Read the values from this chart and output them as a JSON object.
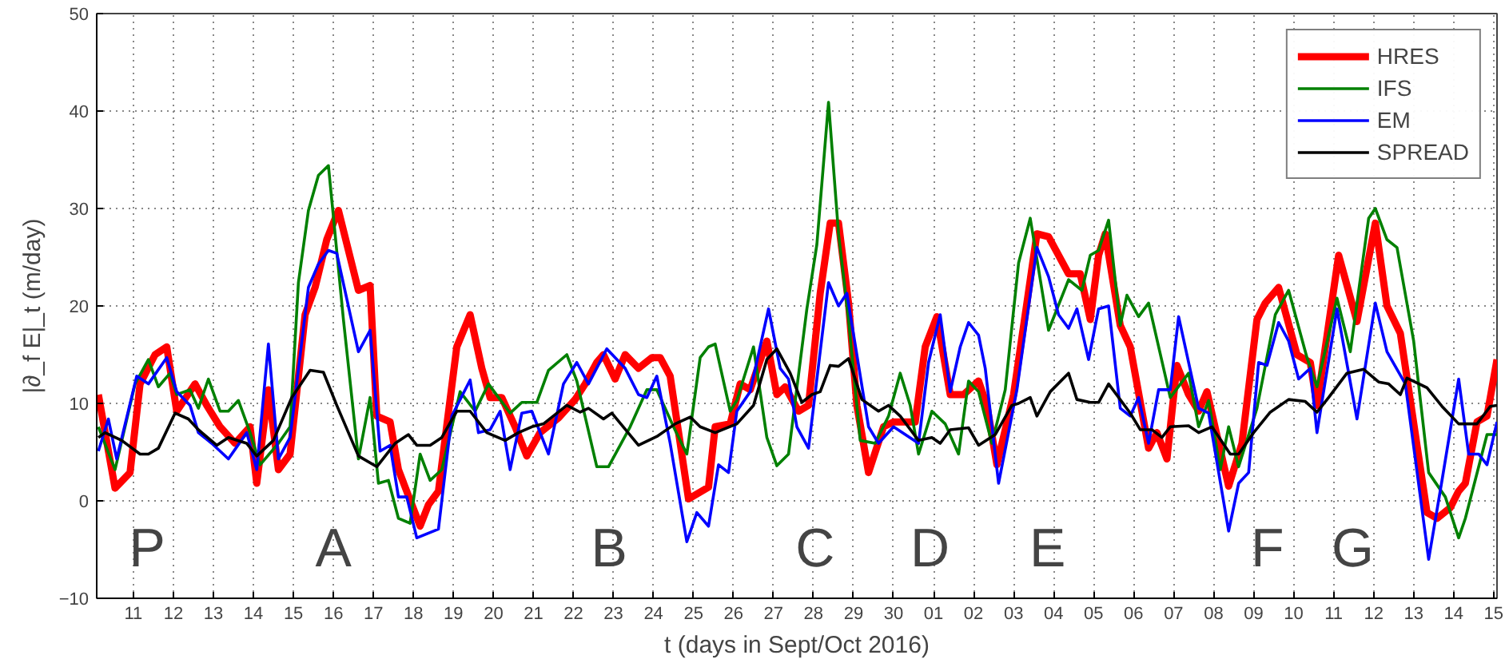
{
  "chart_data": {
    "type": "line",
    "xlabel": "t (days in Sept/Oct 2016)",
    "ylabel": "|∂_f E|_t (m/day)",
    "xlim": [
      "2016-09-10T02:00",
      "2016-10-15T02:00"
    ],
    "ylim": [
      -10,
      50
    ],
    "yticks": [
      -10,
      0,
      10,
      20,
      30,
      40,
      50
    ],
    "xticks": [
      {
        "value": "2016-09-11",
        "label": "11"
      },
      {
        "value": "2016-09-12",
        "label": "12"
      },
      {
        "value": "2016-09-13",
        "label": "13"
      },
      {
        "value": "2016-09-14",
        "label": "14"
      },
      {
        "value": "2016-09-15",
        "label": "15"
      },
      {
        "value": "2016-09-16",
        "label": "16"
      },
      {
        "value": "2016-09-17",
        "label": "17"
      },
      {
        "value": "2016-09-18",
        "label": "18"
      },
      {
        "value": "2016-09-19",
        "label": "19"
      },
      {
        "value": "2016-09-20",
        "label": "20"
      },
      {
        "value": "2016-09-21",
        "label": "21"
      },
      {
        "value": "2016-09-22",
        "label": "22"
      },
      {
        "value": "2016-09-23",
        "label": "23"
      },
      {
        "value": "2016-09-24",
        "label": "24"
      },
      {
        "value": "2016-09-25",
        "label": "25"
      },
      {
        "value": "2016-09-26",
        "label": "26"
      },
      {
        "value": "2016-09-27",
        "label": "27"
      },
      {
        "value": "2016-09-28",
        "label": "28"
      },
      {
        "value": "2016-09-29",
        "label": "29"
      },
      {
        "value": "2016-09-30",
        "label": "30"
      },
      {
        "value": "2016-10-01",
        "label": "01"
      },
      {
        "value": "2016-10-02",
        "label": "02"
      },
      {
        "value": "2016-10-03",
        "label": "03"
      },
      {
        "value": "2016-10-04",
        "label": "04"
      },
      {
        "value": "2016-10-05",
        "label": "05"
      },
      {
        "value": "2016-10-06",
        "label": "06"
      },
      {
        "value": "2016-10-07",
        "label": "07"
      },
      {
        "value": "2016-10-08",
        "label": "08"
      },
      {
        "value": "2016-10-09",
        "label": "09"
      },
      {
        "value": "2016-10-10",
        "label": "10"
      },
      {
        "value": "2016-10-11",
        "label": "11"
      },
      {
        "value": "2016-10-12",
        "label": "12"
      },
      {
        "value": "2016-10-13",
        "label": "13"
      },
      {
        "value": "2016-10-14",
        "label": "14"
      },
      {
        "value": "2016-10-15",
        "label": "15"
      }
    ],
    "grid": true,
    "legend": "top right",
    "line_style": "solid",
    "annotations": [
      "P",
      "A",
      "B",
      "C",
      "D",
      "E",
      "F",
      "G"
    ],
    "series": [
      {
        "name": "HRES",
        "color": "#ff0000",
        "x": [
          "2016-09-10T03:00",
          "2016-09-10T13:00",
          "2016-09-10T22:00",
          "2016-09-11T04:00",
          "2016-09-11T13:00",
          "2016-09-11T20:00",
          "2016-09-12T02:00",
          "2016-09-12T13:00",
          "2016-09-12T20:00",
          "2016-09-13T04:00",
          "2016-09-13T13:00",
          "2016-09-13T22:00",
          "2016-09-14T02:00",
          "2016-09-14T09:00",
          "2016-09-14T15:00",
          "2016-09-14T22:00",
          "2016-09-15T07:00",
          "2016-09-15T13:00",
          "2016-09-15T20:00",
          "2016-09-16T03:00",
          "2016-09-16T15:00",
          "2016-09-16T22:00",
          "2016-09-17T02:00",
          "2016-09-17T10:00",
          "2016-09-17T15:00",
          "2016-09-18T04:00",
          "2016-09-18T09:00",
          "2016-09-18T15:00",
          "2016-09-19T02:00",
          "2016-09-19T10:00",
          "2016-09-19T17:00",
          "2016-09-19T22:00",
          "2016-09-20T05:00",
          "2016-09-20T13:00",
          "2016-09-20T20:00",
          "2016-09-21T04:00",
          "2016-09-21T15:00",
          "2016-09-22T01:00",
          "2016-09-22T07:00",
          "2016-09-22T14:00",
          "2016-09-22T18:00",
          "2016-09-23T01:00",
          "2016-09-23T07:00",
          "2016-09-23T15:00",
          "2016-09-23T23:00",
          "2016-09-24T04:00",
          "2016-09-24T10:00",
          "2016-09-24T21:00",
          "2016-09-25T09:00",
          "2016-09-25T13:00",
          "2016-09-25T22:00",
          "2016-09-26T04:00",
          "2016-09-26T10:00",
          "2016-09-26T20:00",
          "2016-09-27T02:00",
          "2016-09-27T07:00",
          "2016-09-27T15:00",
          "2016-09-27T21:00",
          "2016-09-28T04:00",
          "2016-09-28T10:00",
          "2016-09-28T15:00",
          "2016-09-28T21:00",
          "2016-09-29T02:00",
          "2016-09-29T09:00",
          "2016-09-29T18:00",
          "2016-09-30T00:00",
          "2016-09-30T13:00",
          "2016-09-30T19:00",
          "2016-10-01T02:00",
          "2016-10-01T10:00",
          "2016-10-01T18:00",
          "2016-10-02T03:00",
          "2016-10-02T08:00",
          "2016-10-02T14:00",
          "2016-10-03T00:00",
          "2016-10-03T08:00",
          "2016-10-03T14:00",
          "2016-10-03T21:00",
          "2016-10-04T09:00",
          "2016-10-04T16:00",
          "2016-10-04T22:00",
          "2016-10-05T03:00",
          "2016-10-05T07:00",
          "2016-10-05T16:00",
          "2016-10-05T22:00",
          "2016-10-06T09:00",
          "2016-10-06T14:00",
          "2016-10-06T20:00",
          "2016-10-07T02:00",
          "2016-10-07T09:00",
          "2016-10-07T15:00",
          "2016-10-07T20:00",
          "2016-10-08T09:00",
          "2016-10-08T17:00",
          "2016-10-09T02:00",
          "2016-10-09T07:00",
          "2016-10-09T15:00",
          "2016-10-10T02:00",
          "2016-10-10T10:00",
          "2016-10-10T14:00",
          "2016-10-11T03:00",
          "2016-10-11T14:00",
          "2016-10-12T01:00",
          "2016-10-12T08:00",
          "2016-10-12T16:00",
          "2016-10-13T08:00",
          "2016-10-13T14:00",
          "2016-10-13T22:00",
          "2016-10-14T03:00",
          "2016-10-14T07:00",
          "2016-10-14T14:00",
          "2016-10-14T20:00",
          "2016-10-15T02:00"
        ],
        "values": [
          10.9,
          1.3,
          2.9,
          12,
          15,
          15.8,
          9.2,
          12,
          9.8,
          7.6,
          5.9,
          7.6,
          1.8,
          11.4,
          3.2,
          4.8,
          19.1,
          21.9,
          26.8,
          29.8,
          21.6,
          22.1,
          8.7,
          8.1,
          3.2,
          -2.6,
          -0.4,
          1,
          15.8,
          19.1,
          13.6,
          10.6,
          10.6,
          7.6,
          4.6,
          7,
          8.5,
          10.4,
          12,
          14.2,
          15,
          12.5,
          15,
          13.6,
          14.7,
          14.7,
          12.8,
          0.2,
          1.4,
          7.6,
          7.9,
          12,
          11.4,
          16.4,
          10.9,
          11.7,
          9.2,
          9.8,
          21.3,
          28.5,
          28.5,
          20.3,
          9.8,
          2.9,
          7.6,
          8.1,
          8.1,
          15.8,
          18.9,
          10.9,
          10.9,
          12.3,
          9.8,
          3.7,
          10.9,
          20.3,
          27.4,
          27.1,
          23.3,
          23.3,
          18.6,
          25.2,
          27.4,
          18,
          15.8,
          5.4,
          7,
          4.3,
          13.9,
          10.9,
          9.2,
          11.2,
          1.5,
          5.9,
          18.6,
          20.3,
          21.9,
          15,
          14.2,
          9.8,
          25.2,
          18.4,
          28.5,
          20,
          17.2,
          -1.2,
          -1.8,
          -0.7,
          1,
          1.8,
          8.1,
          8.7,
          14.5
        ]
      },
      {
        "name": "IFS",
        "color": "#008000",
        "x": [
          "2016-09-10T03:00",
          "2016-09-10T13:00",
          "2016-09-11T01:00",
          "2016-09-11T09:00",
          "2016-09-11T15:00",
          "2016-09-11T22:00",
          "2016-09-12T02:00",
          "2016-09-12T10:00",
          "2016-09-12T15:00",
          "2016-09-12T21:00",
          "2016-09-13T04:00",
          "2016-09-13T09:00",
          "2016-09-13T15:00",
          "2016-09-13T22:00",
          "2016-09-14T04:00",
          "2016-09-14T15:00",
          "2016-09-14T22:00",
          "2016-09-15T03:00",
          "2016-09-15T09:00",
          "2016-09-15T15:00",
          "2016-09-15T21:00",
          "2016-09-16T06:00",
          "2016-09-16T15:00",
          "2016-09-16T22:00",
          "2016-09-17T03:00",
          "2016-09-17T09:00",
          "2016-09-17T15:00",
          "2016-09-17T22:00",
          "2016-09-18T04:00",
          "2016-09-18T10:00",
          "2016-09-18T17:00",
          "2016-09-19T04:00",
          "2016-09-19T13:00",
          "2016-09-19T21:00",
          "2016-09-20T10:00",
          "2016-09-20T17:00",
          "2016-09-21T02:00",
          "2016-09-21T09:00",
          "2016-09-21T20:00",
          "2016-09-22T02:00",
          "2016-09-22T14:00",
          "2016-09-22T21:00",
          "2016-09-23T10:00",
          "2016-09-23T20:00",
          "2016-09-24T02:00",
          "2016-09-24T12:00",
          "2016-09-24T20:00",
          "2016-09-25T04:00",
          "2016-09-25T09:00",
          "2016-09-25T13:00",
          "2016-09-25T22:00",
          "2016-09-26T02:00",
          "2016-09-26T12:00",
          "2016-09-26T20:00",
          "2016-09-27T02:00",
          "2016-09-27T09:00",
          "2016-09-27T20:00",
          "2016-09-28T02:00",
          "2016-09-28T09:00",
          "2016-09-28T15:00",
          "2016-09-28T21:00",
          "2016-09-29T04:00",
          "2016-09-29T13:00",
          "2016-09-29T21:00",
          "2016-09-30T04:00",
          "2016-09-30T10:00",
          "2016-09-30T15:00",
          "2016-09-30T23:00",
          "2016-10-01T07:00",
          "2016-10-01T15:00",
          "2016-10-01T21:00",
          "2016-10-02T03:00",
          "2016-10-02T11:00",
          "2016-10-02T19:00",
          "2016-10-03T03:00",
          "2016-10-03T10:00",
          "2016-10-03T21:00",
          "2016-10-04T09:00",
          "2016-10-04T17:00",
          "2016-10-04T22:00",
          "2016-10-05T03:00",
          "2016-10-05T09:00",
          "2016-10-05T16:00",
          "2016-10-05T20:00",
          "2016-10-06T03:00",
          "2016-10-06T09:00",
          "2016-10-06T22:00",
          "2016-10-07T09:00",
          "2016-10-07T15:00",
          "2016-10-07T21:00",
          "2016-10-08T04:00",
          "2016-10-08T09:00",
          "2016-10-08T15:00",
          "2016-10-09T02:00",
          "2016-10-09T13:00",
          "2016-10-09T21:00",
          "2016-10-10T08:00",
          "2016-10-10T14:00",
          "2016-10-11T02:00",
          "2016-10-11T10:00",
          "2016-10-11T21:00",
          "2016-10-12T01:00",
          "2016-10-12T08:00",
          "2016-10-12T14:00",
          "2016-10-13T00:00",
          "2016-10-13T09:00",
          "2016-10-13T19:00",
          "2016-10-14T03:00",
          "2016-10-14T07:00",
          "2016-10-14T20:00",
          "2016-10-15T02:00"
        ],
        "values": [
          7.6,
          3.2,
          12,
          14.5,
          11.7,
          13.1,
          10.9,
          11.4,
          9.5,
          12.5,
          9.2,
          9.2,
          10.3,
          7,
          3.7,
          5.9,
          7.6,
          22.4,
          29.8,
          33.4,
          34.4,
          18.6,
          4.3,
          10.6,
          1.8,
          2.1,
          -1.8,
          -2.3,
          4.8,
          2.1,
          3.2,
          11.2,
          9.2,
          12,
          9,
          10.1,
          10.1,
          13.4,
          15,
          12.3,
          3.5,
          3.5,
          7.6,
          11.4,
          11.4,
          7.6,
          4.8,
          14.7,
          15.8,
          16.1,
          9.2,
          10.3,
          15.8,
          6.5,
          3.6,
          4.8,
          19.7,
          26.3,
          40.9,
          27.4,
          18.6,
          6.2,
          5.9,
          8.7,
          13.1,
          9.8,
          4.8,
          9.2,
          7.9,
          4.8,
          12.3,
          11.2,
          5.9,
          11.4,
          24.4,
          29,
          17.5,
          22.7,
          21.6,
          25.2,
          25.7,
          28.8,
          18,
          21.1,
          18.9,
          20.3,
          10.6,
          13.1,
          7.6,
          10.3,
          3.2,
          7.6,
          3.5,
          9.5,
          19.1,
          21.6,
          14.7,
          11.7,
          20.8,
          15.3,
          29,
          30,
          26.8,
          26,
          16.4,
          2.9,
          0.4,
          -3.8,
          -1.8,
          6.8,
          6.8
        ]
      },
      {
        "name": "EM",
        "color": "#0000ff",
        "x": [
          "2016-09-10T03:00",
          "2016-09-10T09:00",
          "2016-09-10T14:00",
          "2016-09-11T02:00",
          "2016-09-11T09:00",
          "2016-09-11T20:00",
          "2016-09-12T02:00",
          "2016-09-12T10:00",
          "2016-09-12T15:00",
          "2016-09-12T23:00",
          "2016-09-13T09:00",
          "2016-09-13T20:00",
          "2016-09-14T02:00",
          "2016-09-14T09:00",
          "2016-09-14T15:00",
          "2016-09-14T22:00",
          "2016-09-15T09:00",
          "2016-09-15T15:00",
          "2016-09-15T21:00",
          "2016-09-16T02:00",
          "2016-09-16T15:00",
          "2016-09-16T22:00",
          "2016-09-17T04:00",
          "2016-09-17T10:00",
          "2016-09-17T15:00",
          "2016-09-17T20:00",
          "2016-09-18T02:00",
          "2016-09-18T15:00",
          "2016-09-18T23:00",
          "2016-09-19T10:00",
          "2016-09-19T15:00",
          "2016-09-19T22:00",
          "2016-09-20T04:00",
          "2016-09-20T10:00",
          "2016-09-20T17:00",
          "2016-09-20T23:00",
          "2016-09-21T09:00",
          "2016-09-21T18:00",
          "2016-09-22T02:00",
          "2016-09-22T09:00",
          "2016-09-22T20:00",
          "2016-09-23T07:00",
          "2016-09-23T15:00",
          "2016-09-23T20:00",
          "2016-09-24T02:00",
          "2016-09-24T10:00",
          "2016-09-24T20:00",
          "2016-09-25T02:00",
          "2016-09-25T09:00",
          "2016-09-25T15:00",
          "2016-09-25T21:00",
          "2016-09-26T02:00",
          "2016-09-26T10:00",
          "2016-09-26T21:00",
          "2016-09-27T04:00",
          "2016-09-27T09:00",
          "2016-09-27T14:00",
          "2016-09-27T21:00",
          "2016-09-28T09:00",
          "2016-09-28T15:00",
          "2016-09-28T20:00",
          "2016-09-29T09:00",
          "2016-09-29T15:00",
          "2016-09-30T00:00",
          "2016-09-30T15:00",
          "2016-09-30T21:00",
          "2016-10-01T04:00",
          "2016-10-01T10:00",
          "2016-10-01T16:00",
          "2016-10-01T21:00",
          "2016-10-02T03:00",
          "2016-10-02T07:00",
          "2016-10-02T15:00",
          "2016-10-03T02:00",
          "2016-10-03T14:00",
          "2016-10-03T21:00",
          "2016-10-04T03:00",
          "2016-10-04T09:00",
          "2016-10-04T14:00",
          "2016-10-04T21:00",
          "2016-10-05T03:00",
          "2016-10-05T09:00",
          "2016-10-05T16:00",
          "2016-10-05T22:00",
          "2016-10-06T03:00",
          "2016-10-06T09:00",
          "2016-10-06T15:00",
          "2016-10-06T22:00",
          "2016-10-07T03:00",
          "2016-10-07T15:00",
          "2016-10-07T21:00",
          "2016-10-08T09:00",
          "2016-10-08T15:00",
          "2016-10-08T21:00",
          "2016-10-09T03:00",
          "2016-10-09T08:00",
          "2016-10-09T15:00",
          "2016-10-09T21:00",
          "2016-10-10T03:00",
          "2016-10-10T10:00",
          "2016-10-10T14:00",
          "2016-10-11T02:00",
          "2016-10-11T14:00",
          "2016-10-12T01:00",
          "2016-10-12T08:00",
          "2016-10-12T19:00",
          "2016-10-13T09:00",
          "2016-10-13T17:00",
          "2016-10-14T03:00",
          "2016-10-14T09:00",
          "2016-10-14T15:00",
          "2016-10-14T20:00",
          "2016-10-15T02:00"
        ],
        "values": [
          5.1,
          8.4,
          4.3,
          12.8,
          12,
          14.7,
          11.2,
          9.8,
          7,
          5.9,
          4.3,
          7,
          3.2,
          16.1,
          4.3,
          6.5,
          21.9,
          24.3,
          25.7,
          25.4,
          15.3,
          17.5,
          5.1,
          5.7,
          0.4,
          0.4,
          -3.8,
          -2.9,
          8.7,
          12.4,
          7,
          7.3,
          9.2,
          3.2,
          9,
          9.2,
          4.8,
          12,
          14.2,
          12,
          15.6,
          13.6,
          10.9,
          10.6,
          12.8,
          5.9,
          -4.2,
          -1.2,
          -2.6,
          3.7,
          2.9,
          9.2,
          11.2,
          19.7,
          13.6,
          12.5,
          7.6,
          5.4,
          22.4,
          20,
          21.3,
          7.6,
          5.9,
          7.6,
          5.9,
          14.2,
          19.1,
          11.2,
          15.8,
          18.3,
          17,
          13.6,
          1.8,
          11.4,
          26,
          23,
          19.1,
          17.7,
          19.7,
          14.5,
          19.7,
          20,
          9.5,
          8.7,
          10.6,
          5.9,
          11.4,
          11.4,
          18.9,
          9.5,
          9,
          -3.1,
          1.8,
          2.9,
          14.2,
          13.9,
          18.3,
          16.4,
          12.5,
          13.6,
          7,
          19.7,
          8.4,
          20.3,
          15.3,
          12,
          -6,
          2.1,
          12.5,
          4.8,
          4.8,
          3.7,
          8.1
        ]
      },
      {
        "name": "SPREAD",
        "color": "#000000",
        "x": [
          "2016-09-10T03:00",
          "2016-09-10T07:00",
          "2016-09-10T17:00",
          "2016-09-11T04:00",
          "2016-09-11T09:00",
          "2016-09-11T15:00",
          "2016-09-12T01:00",
          "2016-09-12T09:00",
          "2016-09-12T15:00",
          "2016-09-13T02:00",
          "2016-09-13T09:00",
          "2016-09-13T20:00",
          "2016-09-14T02:00",
          "2016-09-14T12:00",
          "2016-09-14T23:00",
          "2016-09-15T10:00",
          "2016-09-15T18:00",
          "2016-09-16T02:00",
          "2016-09-16T15:00",
          "2016-09-17T02:00",
          "2016-09-17T13:00",
          "2016-09-17T21:00",
          "2016-09-18T02:00",
          "2016-09-18T10:00",
          "2016-09-18T17:00",
          "2016-09-19T02:00",
          "2016-09-19T10:00",
          "2016-09-19T20:00",
          "2016-09-20T07:00",
          "2016-09-20T15:00",
          "2016-09-20T23:00",
          "2016-09-21T06:00",
          "2016-09-21T20:00",
          "2016-09-22T04:00",
          "2016-09-22T09:00",
          "2016-09-22T18:00",
          "2016-09-22T23:00",
          "2016-09-23T15:00",
          "2016-09-24T02:00",
          "2016-09-24T13:00",
          "2016-09-24T22:00",
          "2016-09-25T04:00",
          "2016-09-25T13:00",
          "2016-09-26T02:00",
          "2016-09-26T12:00",
          "2016-09-26T20:00",
          "2016-09-27T02:00",
          "2016-09-27T10:00",
          "2016-09-27T17:00",
          "2016-09-27T23:00",
          "2016-09-28T04:00",
          "2016-09-28T10:00",
          "2016-09-28T15:00",
          "2016-09-28T21:00",
          "2016-09-29T05:00",
          "2016-09-29T15:00",
          "2016-09-29T21:00",
          "2016-09-30T04:00",
          "2016-09-30T15:00",
          "2016-09-30T23:00",
          "2016-10-01T04:00",
          "2016-10-01T10:00",
          "2016-10-01T21:00",
          "2016-10-02T03:00",
          "2016-10-02T13:00",
          "2016-10-02T23:00",
          "2016-10-03T03:00",
          "2016-10-03T10:00",
          "2016-10-03T14:00",
          "2016-10-03T22:00",
          "2016-10-04T09:00",
          "2016-10-04T14:00",
          "2016-10-04T22:00",
          "2016-10-05T03:00",
          "2016-10-05T09:00",
          "2016-10-05T22:00",
          "2016-10-06T04:00",
          "2016-10-06T11:00",
          "2016-10-06T17:00",
          "2016-10-06T22:00",
          "2016-10-07T09:00",
          "2016-10-07T15:00",
          "2016-10-07T23:00",
          "2016-10-08T10:00",
          "2016-10-08T15:00",
          "2016-10-09T00:00",
          "2016-10-09T10:00",
          "2016-10-09T21:00",
          "2016-10-10T07:00",
          "2016-10-10T14:00",
          "2016-10-10T21:00",
          "2016-10-11T08:00",
          "2016-10-11T18:00",
          "2016-10-12T03:00",
          "2016-10-12T09:00",
          "2016-10-12T16:00",
          "2016-10-12T20:00",
          "2016-10-13T08:00",
          "2016-10-13T17:00",
          "2016-10-14T03:00",
          "2016-10-14T14:00",
          "2016-10-14T22:00",
          "2016-10-15T02:00"
        ],
        "values": [
          6.5,
          7,
          6.2,
          4.8,
          4.8,
          5.4,
          9,
          8.4,
          7.3,
          5.7,
          6.5,
          5.9,
          4.6,
          6.2,
          10.6,
          13.4,
          13.2,
          9.8,
          4.6,
          3.5,
          5.9,
          6.8,
          5.7,
          5.7,
          6.5,
          9.2,
          9.2,
          7,
          6.2,
          7,
          7.6,
          7.9,
          9.8,
          9.1,
          9.5,
          8.4,
          9,
          5.7,
          6.6,
          7.9,
          8.6,
          7.6,
          7,
          7.9,
          9.8,
          14.5,
          15.6,
          13.1,
          10.1,
          10.9,
          11.2,
          13.9,
          13.8,
          14.6,
          10.4,
          9.2,
          9.8,
          8.7,
          6.2,
          6.5,
          5.9,
          7.3,
          7.5,
          5.7,
          6.8,
          9.8,
          10,
          10.6,
          8.7,
          11.2,
          13.1,
          10.4,
          10.1,
          10.1,
          12,
          9,
          7.3,
          7.3,
          6.5,
          7.6,
          7.7,
          7,
          7.6,
          4.8,
          4.8,
          7,
          9.1,
          10.4,
          10.2,
          9.1,
          10.6,
          13.1,
          13.5,
          12.2,
          12,
          10.9,
          12.6,
          11.6,
          9.7,
          7.9,
          7.9,
          9.7,
          9.8
        ]
      }
    ]
  }
}
